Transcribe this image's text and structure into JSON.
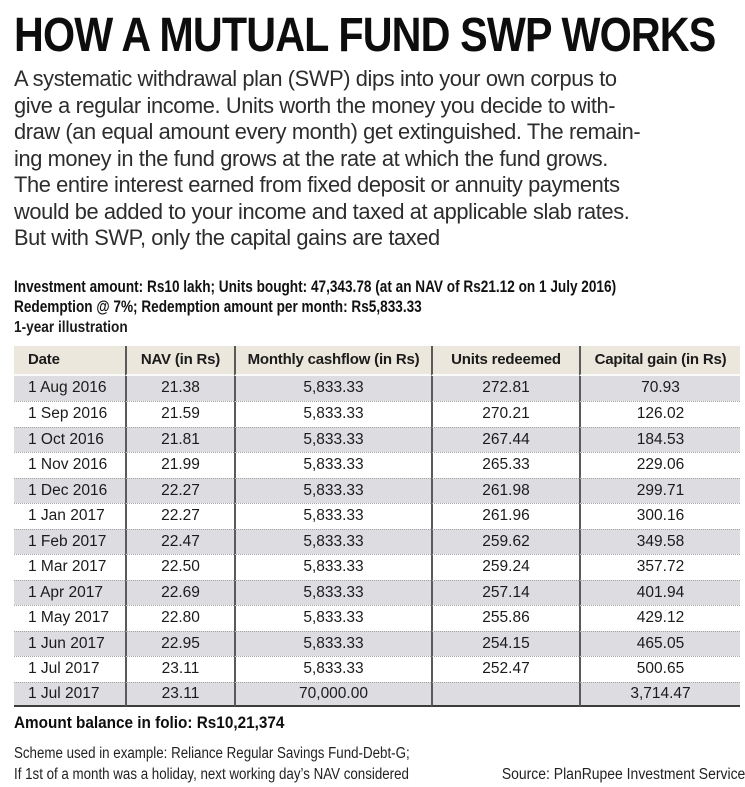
{
  "title": "HOW A MUTUAL FUND SWP WORKS",
  "intro_lines": [
    "A systematic withdrawal plan (SWP) dips into your own corpus to",
    "give a regular income. Units worth the money you decide to with-",
    "draw (an equal amount every month) get extinguished. The remain-",
    "ing money in the fund grows at the rate at which the fund grows.",
    "The entire interest earned from fixed deposit or annuity payments",
    "would be added to your income and taxed at applicable slab rates.",
    "But with SWP, only the capital gains are taxed"
  ],
  "investment_summary": {
    "line1": "Investment amount: Rs10 lakh; Units bought: 47,343.78 (at an NAV of Rs21.12 on 1 July 2016)",
    "line2": "Redemption @ 7%; Redemption amount per month: Rs5,833.33"
  },
  "table": {
    "caption": "1-year illustration",
    "columns": [
      "Date",
      "NAV (in Rs)",
      "Monthly cashflow (in Rs)",
      "Units redeemed",
      "Capital gain (in Rs)"
    ],
    "rows": [
      [
        "1 Aug 2016",
        "21.38",
        "5,833.33",
        "272.81",
        "70.93"
      ],
      [
        "1 Sep 2016",
        "21.59",
        "5,833.33",
        "270.21",
        "126.02"
      ],
      [
        "1 Oct 2016",
        "21.81",
        "5,833.33",
        "267.44",
        "184.53"
      ],
      [
        "1 Nov 2016",
        "21.99",
        "5,833.33",
        "265.33",
        "229.06"
      ],
      [
        "1 Dec 2016",
        "22.27",
        "5,833.33",
        "261.98",
        "299.71"
      ],
      [
        "1 Jan 2017",
        "22.27",
        "5,833.33",
        "261.96",
        "300.16"
      ],
      [
        "1 Feb 2017",
        "22.47",
        "5,833.33",
        "259.62",
        "349.58"
      ],
      [
        "1 Mar 2017",
        "22.50",
        "5,833.33",
        "259.24",
        "357.72"
      ],
      [
        "1 Apr 2017",
        "22.69",
        "5,833.33",
        "257.14",
        "401.94"
      ],
      [
        "1 May 2017",
        "22.80",
        "5,833.33",
        "255.86",
        "429.12"
      ],
      [
        "1 Jun 2017",
        "22.95",
        "5,833.33",
        "254.15",
        "465.05"
      ],
      [
        "1 Jul 2017",
        "23.11",
        "5,833.33",
        "252.47",
        "500.65"
      ],
      [
        "1 Jul 2017",
        "23.11",
        "70,000.00",
        "",
        "3,714.47"
      ]
    ]
  },
  "balance_line": "Amount balance in folio: Rs10,21,374",
  "footnote_lines": [
    "Scheme used in example: Reliance Regular Savings Fund-Debt-G;",
    "If 1st of a month was a holiday, next working day’s NAV considered"
  ],
  "source": "Source: PlanRupee Investment Services",
  "colors": {
    "table_header_bg": "#ece7dc",
    "row_alt_bg": "#dcdce1",
    "column_divider": "#5a5a5a",
    "table_bottom_border": "#3c3c3c",
    "text": "#1b1b1b"
  }
}
